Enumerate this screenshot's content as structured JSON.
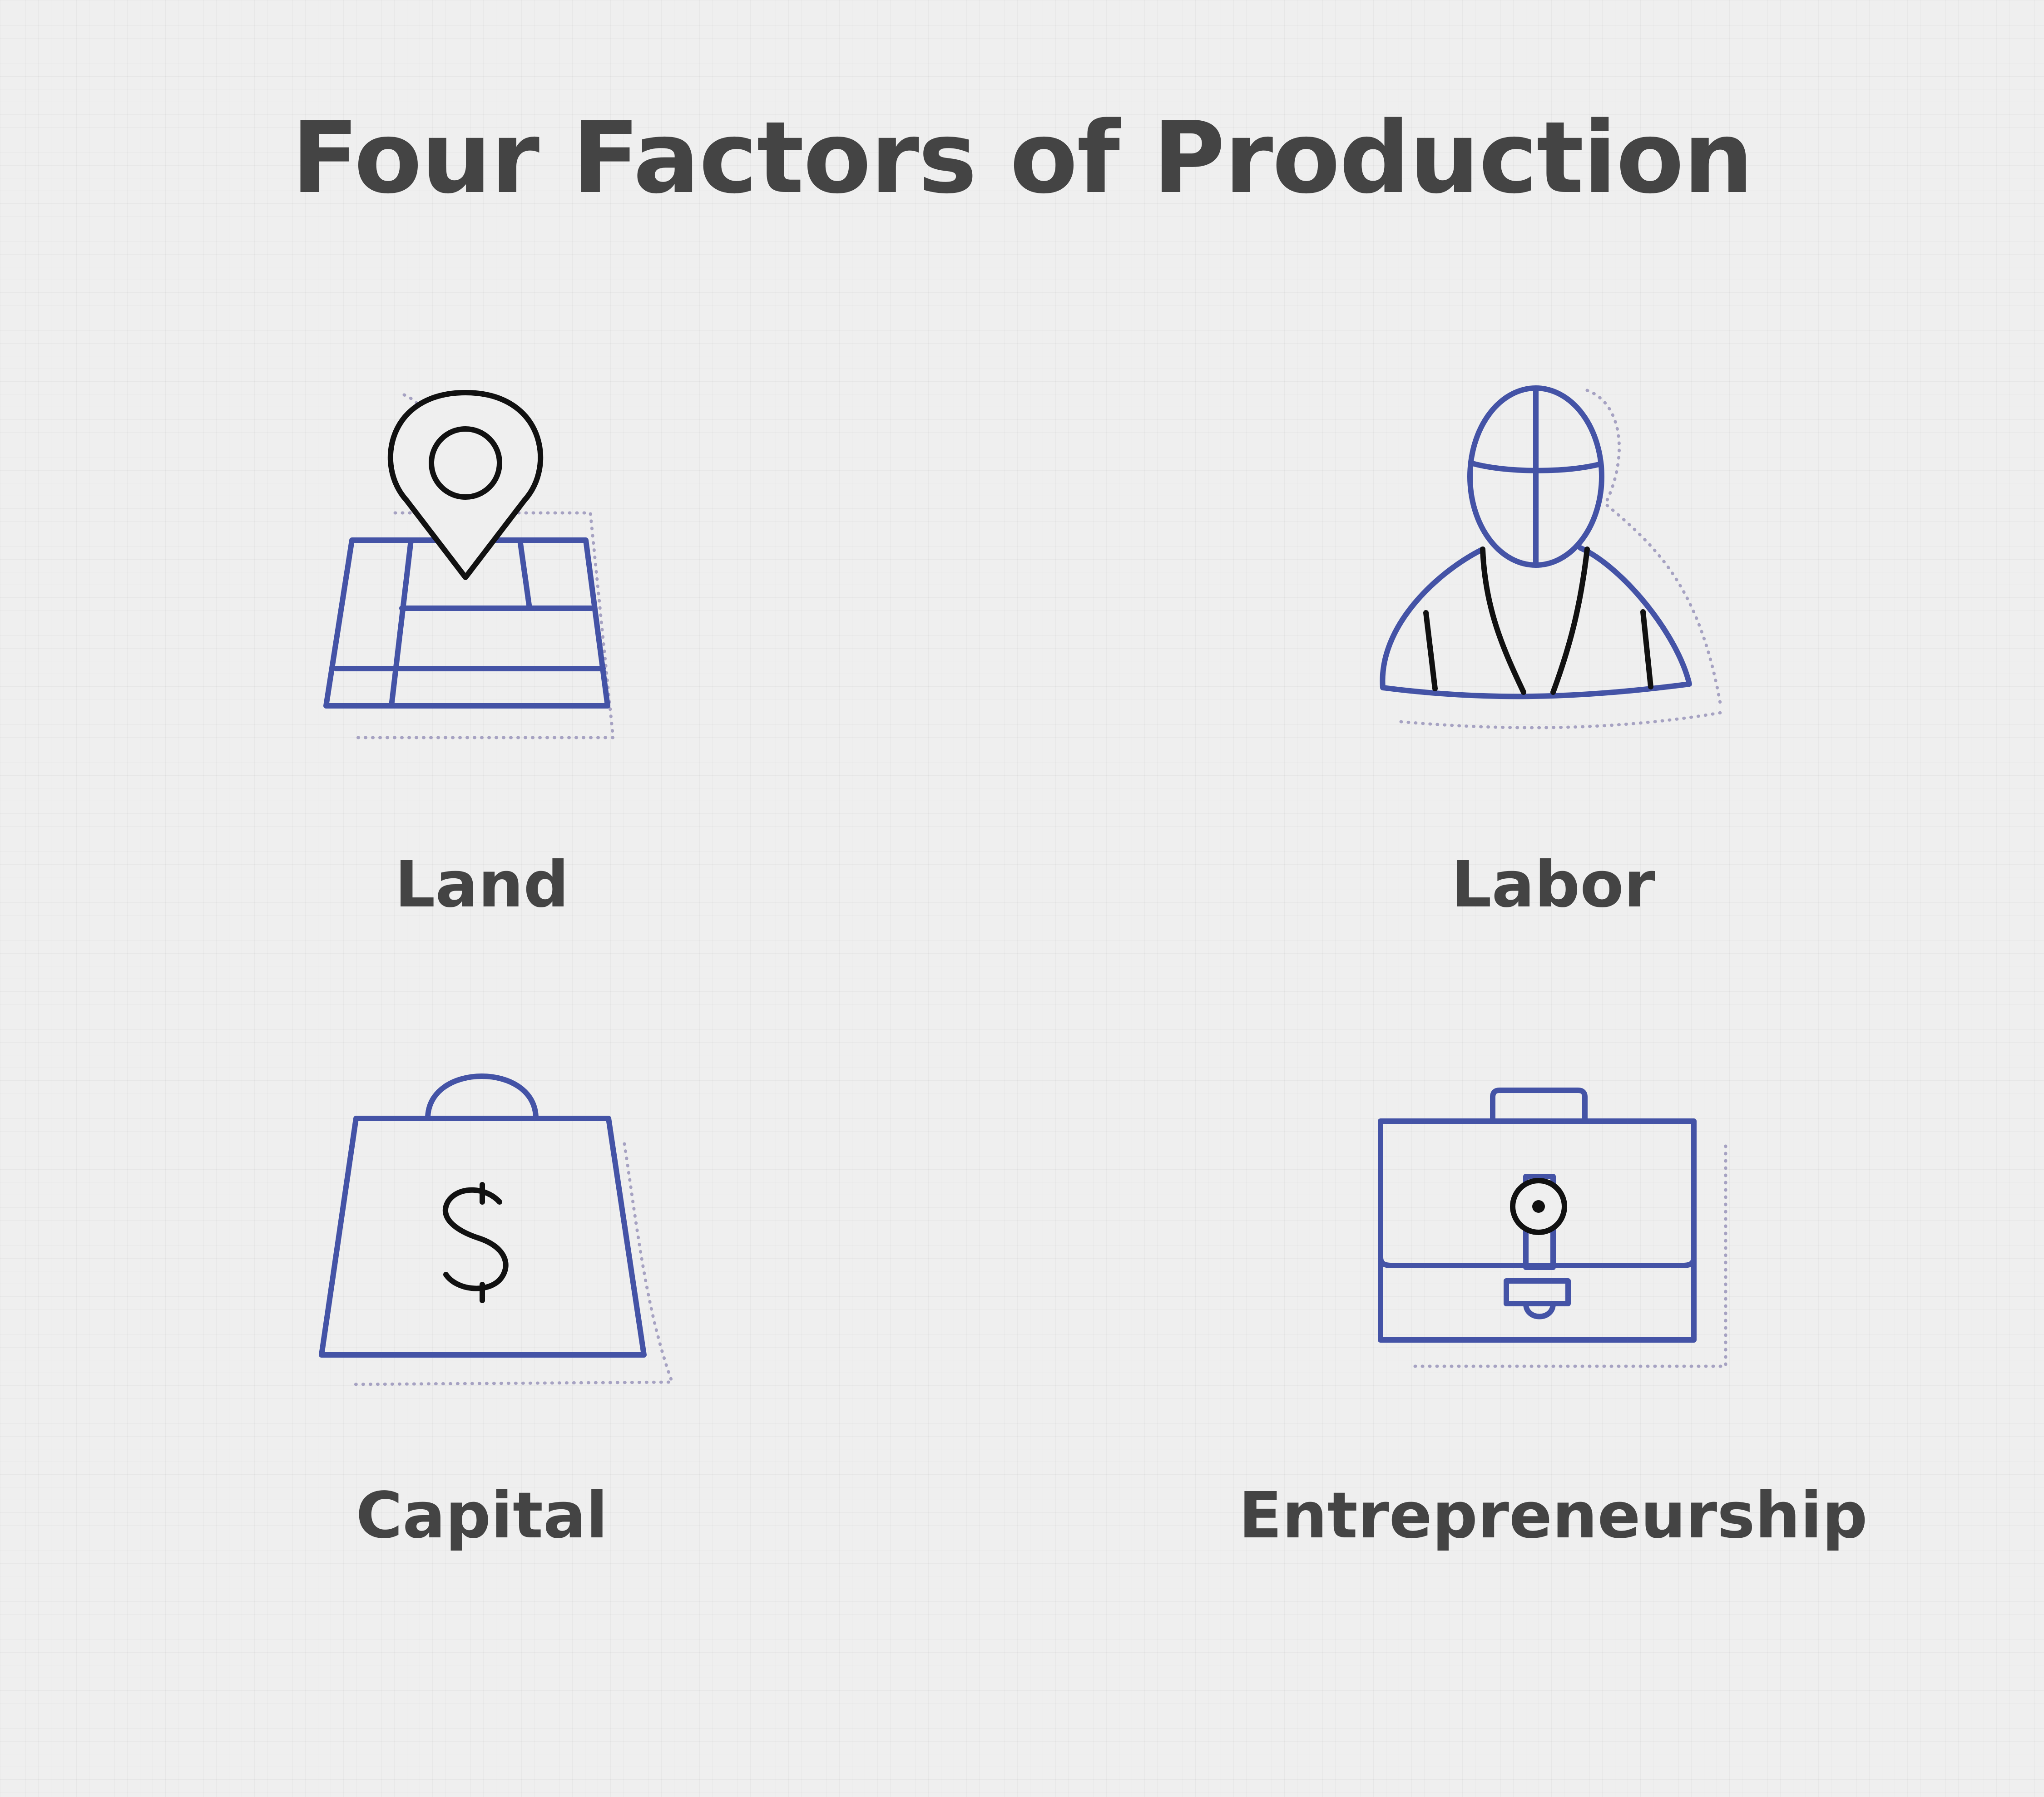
{
  "title": "Four Factors of Production",
  "colors": {
    "icon_blue": "#4453a6",
    "icon_black": "#111111",
    "shadow_dots": "#a6a2c2",
    "text": "#444444",
    "background": "#efefef"
  },
  "factors": [
    {
      "label": "Land",
      "icon": "map-pin-icon"
    },
    {
      "label": "Labor",
      "icon": "worker-icon"
    },
    {
      "label": "Capital",
      "icon": "money-bag-icon"
    },
    {
      "label": "Entrepreneurship",
      "icon": "briefcase-icon"
    }
  ],
  "capital_symbol": "$"
}
